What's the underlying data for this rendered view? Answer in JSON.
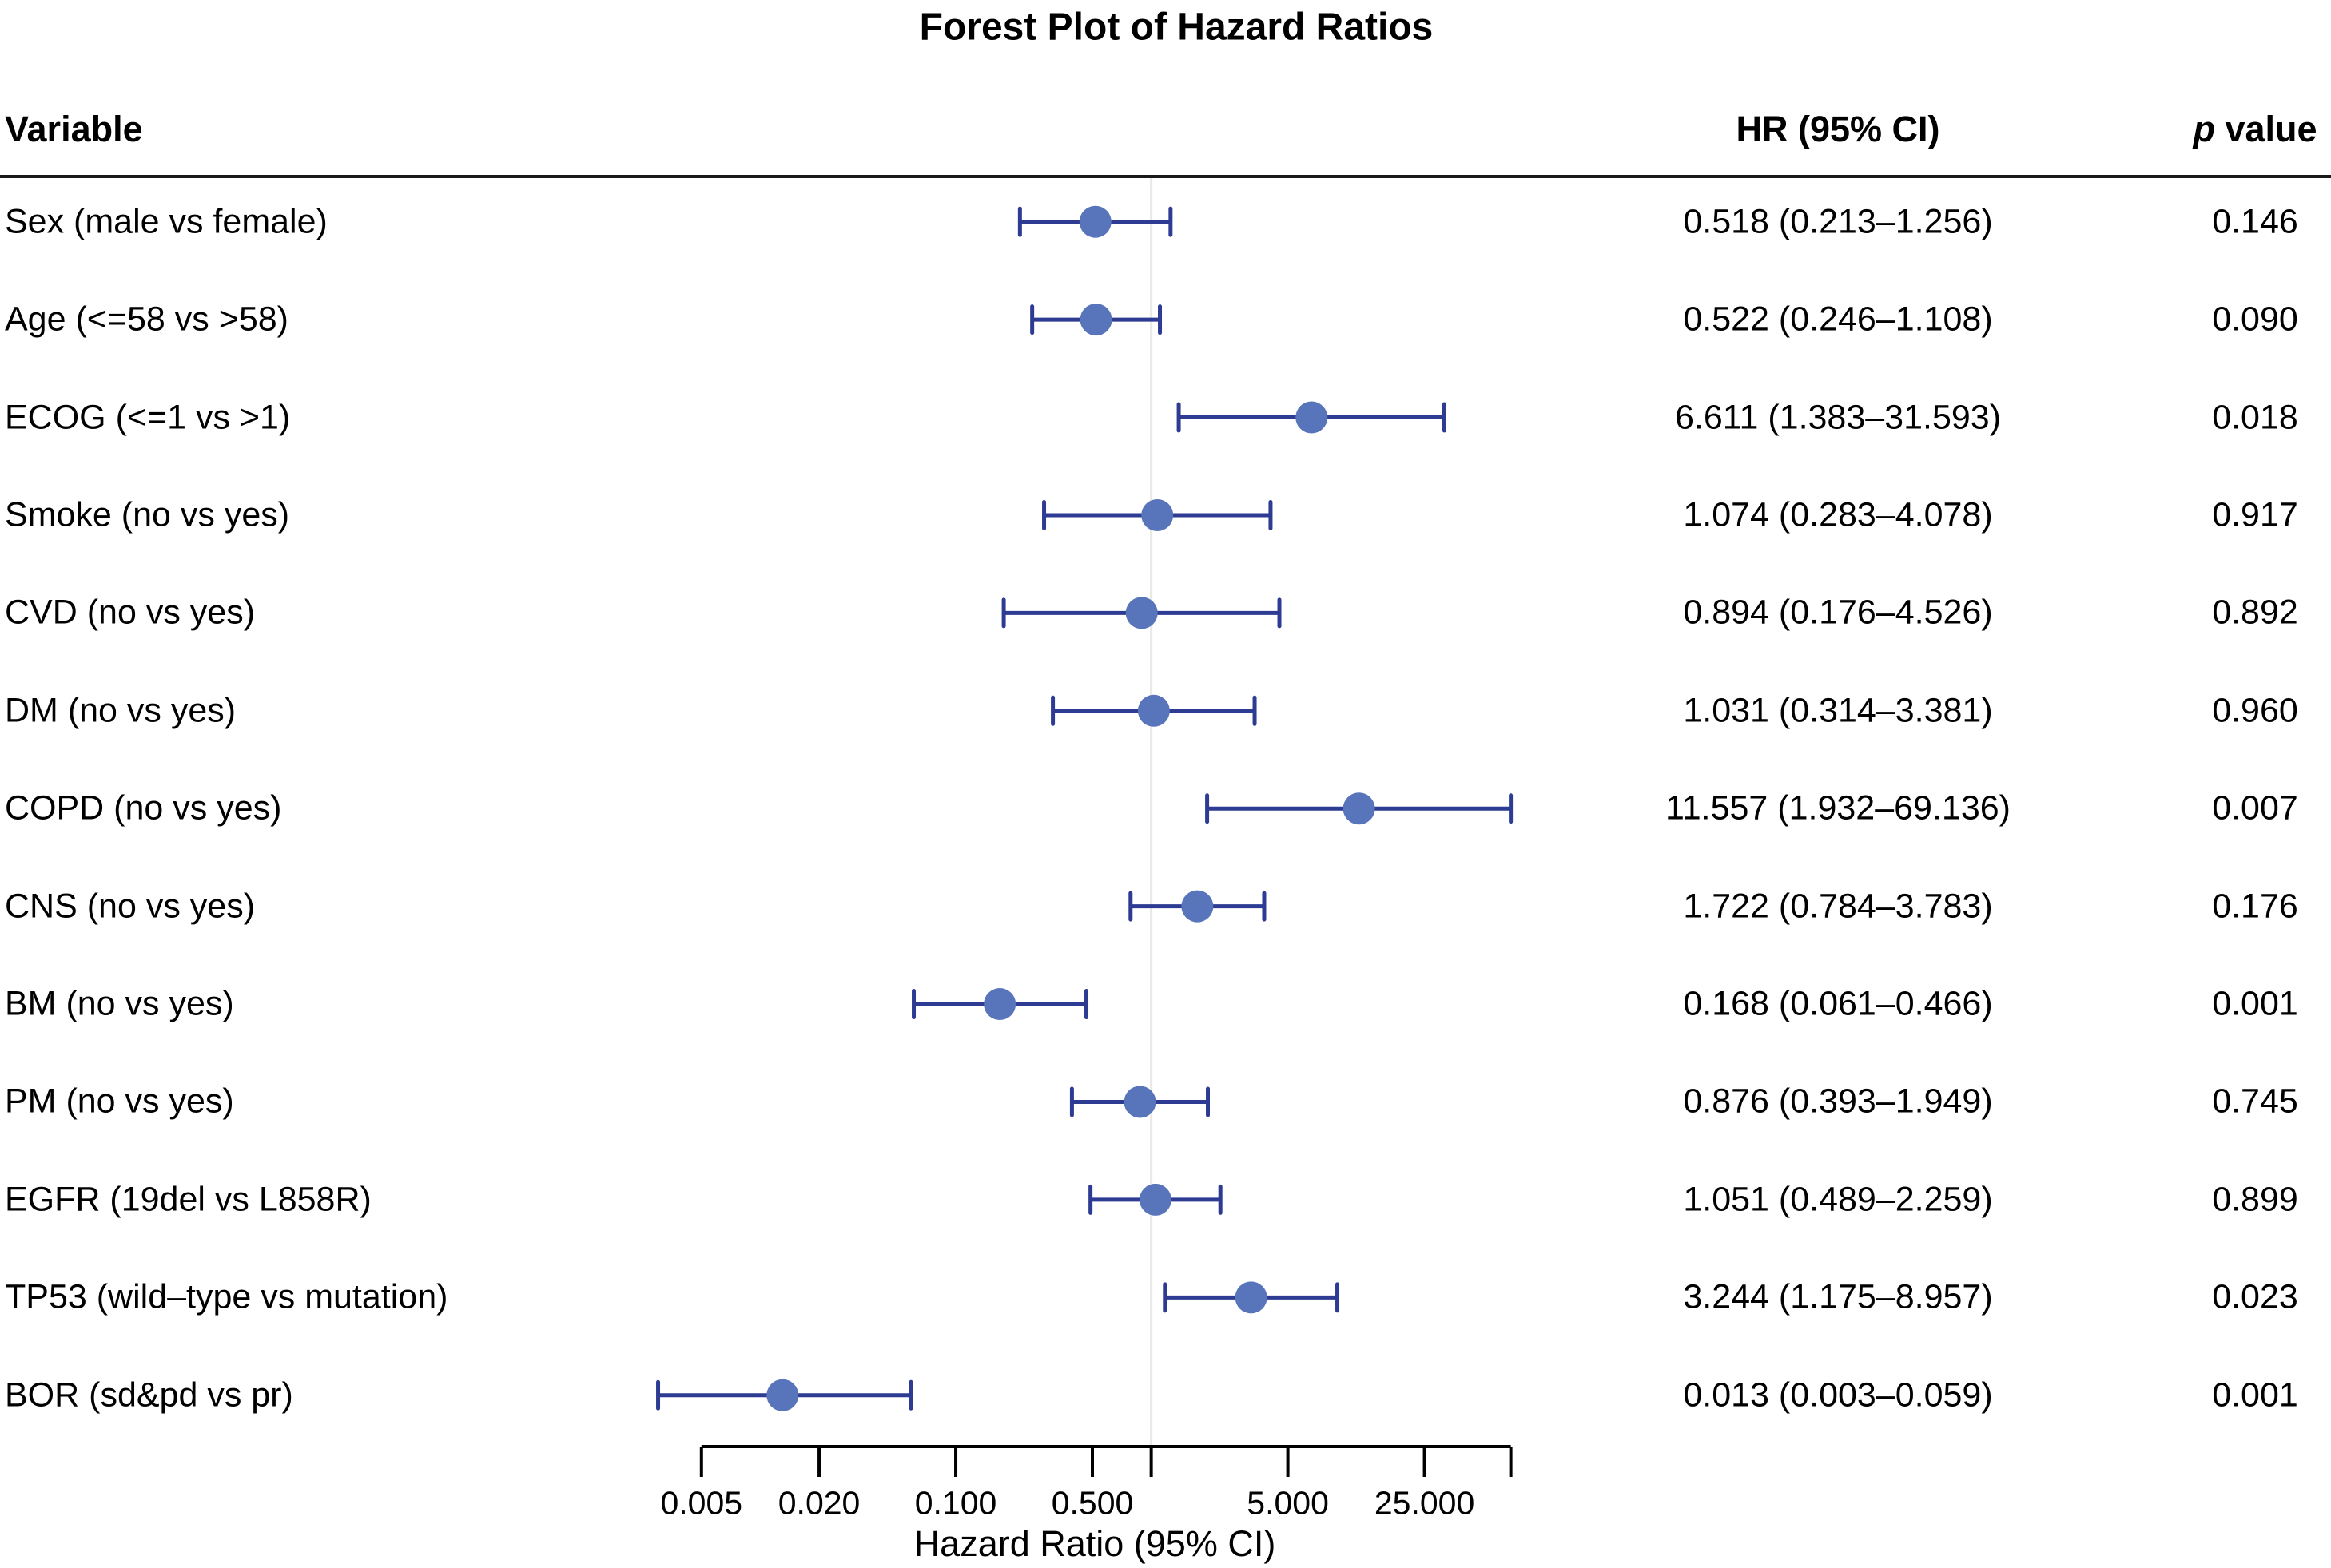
{
  "chart_data": {
    "type": "scatter",
    "variant": "forest-plot",
    "title": "Forest Plot of Hazard Ratios",
    "columns": {
      "variable": "Variable",
      "hr": "HR (95% CI)",
      "p_italic": "p",
      "p_rest": " value"
    },
    "x_axis": {
      "label": "Hazard Ratio (95% CI)",
      "scale": "log",
      "domain": [
        0.003,
        69.136
      ],
      "ticks": [
        0.005,
        0.02,
        0.1,
        0.5,
        1.0,
        5.0,
        25.0,
        69.136
      ],
      "tick_labels": [
        "0.005",
        "0.020",
        "0.100",
        "0.500",
        "",
        "5.000",
        "25.000",
        ""
      ],
      "reference_line_x": 1.0,
      "grid": "off"
    },
    "rows": [
      {
        "variable": "Sex (male vs female)",
        "hr": 0.518,
        "low": 0.213,
        "high": 1.256,
        "hr_text": "0.518 (0.213–1.256)",
        "p_text": "0.146"
      },
      {
        "variable": "Age (<=58 vs >58)",
        "hr": 0.522,
        "low": 0.246,
        "high": 1.108,
        "hr_text": "0.522 (0.246–1.108)",
        "p_text": "0.090"
      },
      {
        "variable": "ECOG (<=1 vs >1)",
        "hr": 6.611,
        "low": 1.383,
        "high": 31.593,
        "hr_text": "6.611 (1.383–31.593)",
        "p_text": "0.018"
      },
      {
        "variable": "Smoke (no vs yes)",
        "hr": 1.074,
        "low": 0.283,
        "high": 4.078,
        "hr_text": "1.074 (0.283–4.078)",
        "p_text": "0.917"
      },
      {
        "variable": "CVD (no vs yes)",
        "hr": 0.894,
        "low": 0.176,
        "high": 4.526,
        "hr_text": "0.894 (0.176–4.526)",
        "p_text": "0.892"
      },
      {
        "variable": "DM (no vs yes)",
        "hr": 1.031,
        "low": 0.314,
        "high": 3.381,
        "hr_text": "1.031 (0.314–3.381)",
        "p_text": "0.960"
      },
      {
        "variable": "COPD (no vs yes)",
        "hr": 11.557,
        "low": 1.932,
        "high": 69.136,
        "hr_text": "11.557 (1.932–69.136)",
        "p_text": "0.007"
      },
      {
        "variable": "CNS (no vs yes)",
        "hr": 1.722,
        "low": 0.784,
        "high": 3.783,
        "hr_text": "1.722 (0.784–3.783)",
        "p_text": "0.176"
      },
      {
        "variable": "BM (no vs yes)",
        "hr": 0.168,
        "low": 0.061,
        "high": 0.466,
        "hr_text": "0.168 (0.061–0.466)",
        "p_text": "0.001"
      },
      {
        "variable": "PM (no vs yes)",
        "hr": 0.876,
        "low": 0.393,
        "high": 1.949,
        "hr_text": "0.876 (0.393–1.949)",
        "p_text": "0.745"
      },
      {
        "variable": "EGFR (19del vs L858R)",
        "hr": 1.051,
        "low": 0.489,
        "high": 2.259,
        "hr_text": "1.051 (0.489–2.259)",
        "p_text": "0.899"
      },
      {
        "variable": "TP53 (wild–type vs mutation)",
        "hr": 3.244,
        "low": 1.175,
        "high": 8.957,
        "hr_text": "3.244 (1.175–8.957)",
        "p_text": "0.023"
      },
      {
        "variable": "BOR (sd&pd vs pr)",
        "hr": 0.013,
        "low": 0.003,
        "high": 0.059,
        "hr_text": "0.013 (0.003–0.059)",
        "p_text": "0.001"
      }
    ],
    "colors": {
      "marker": "#5874ba",
      "error_bar": "#2d3b92",
      "reference_line": "#e9e8e4",
      "axis": "#000000"
    }
  }
}
